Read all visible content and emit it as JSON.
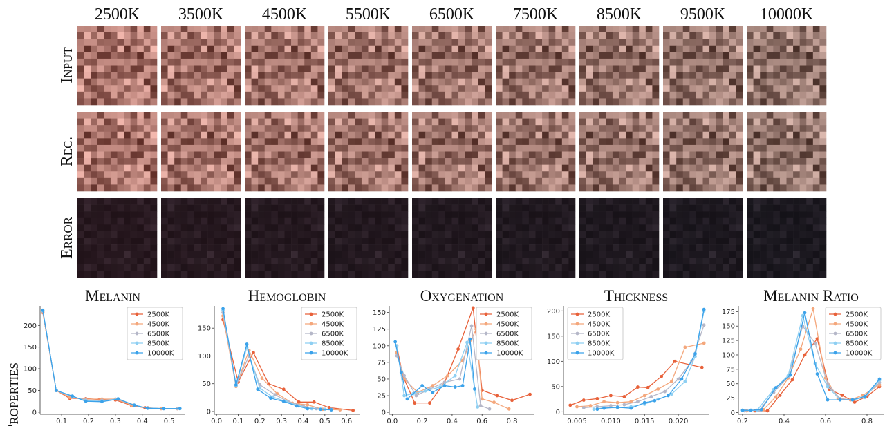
{
  "figure": {
    "columns": [
      "2500K",
      "3500K",
      "4500K",
      "5500K",
      "6500K",
      "7500K",
      "8500K",
      "9500K",
      "10000K"
    ],
    "rows": [
      "Input",
      "Rec.",
      "Error"
    ]
  },
  "chart_data": [
    {
      "type": "line",
      "title": "Melanin",
      "ylabel": "Properties",
      "legend": "upper right",
      "xlim": [
        0.02,
        0.56
      ],
      "xticks": [
        0.1,
        0.2,
        0.3,
        0.4,
        0.5
      ],
      "ylim": [
        -5,
        245
      ],
      "yticks": [
        0,
        50,
        100,
        150,
        200
      ],
      "series": [
        {
          "name": "2500K",
          "color": "#e8613a",
          "x": [
            0.03,
            0.08,
            0.13,
            0.19,
            0.24,
            0.3,
            0.36,
            0.41,
            0.47,
            0.53
          ],
          "values": [
            230,
            50,
            32,
            31,
            29,
            28,
            15,
            10,
            8,
            8
          ]
        },
        {
          "name": "4500K",
          "color": "#f4a77c",
          "x": [
            0.03,
            0.08,
            0.13,
            0.19,
            0.25,
            0.3,
            0.36,
            0.42,
            0.47,
            0.53
          ],
          "values": [
            232,
            50,
            34,
            30,
            30,
            30,
            16,
            10,
            8,
            8
          ]
        },
        {
          "name": "6500K",
          "color": "#b5b7c8",
          "x": [
            0.03,
            0.08,
            0.14,
            0.19,
            0.25,
            0.31,
            0.37,
            0.42,
            0.48,
            0.53
          ],
          "values": [
            233,
            50,
            35,
            28,
            27,
            30,
            16,
            9,
            8,
            8
          ]
        },
        {
          "name": "8500K",
          "color": "#8ecff2",
          "x": [
            0.03,
            0.08,
            0.14,
            0.19,
            0.25,
            0.31,
            0.37,
            0.42,
            0.48,
            0.54
          ],
          "values": [
            234,
            50,
            36,
            26,
            25,
            31,
            16,
            9,
            8,
            8
          ]
        },
        {
          "name": "10000K",
          "color": "#3ba2ea",
          "x": [
            0.03,
            0.08,
            0.14,
            0.19,
            0.25,
            0.31,
            0.37,
            0.42,
            0.48,
            0.54
          ],
          "values": [
            235,
            50,
            37,
            25,
            24,
            30,
            16,
            9,
            8,
            8
          ]
        }
      ]
    },
    {
      "type": "line",
      "title": "Hemoglobin",
      "legend": "upper right",
      "xlim": [
        -0.01,
        0.66
      ],
      "xticks": [
        {
          "value": 0,
          "label": "0.0"
        },
        0.1,
        0.2,
        0.3,
        0.4,
        0.5,
        0.6
      ],
      "ylim": [
        -5,
        190
      ],
      "yticks": [
        0,
        50,
        100,
        150
      ],
      "series": [
        {
          "name": "2500K",
          "color": "#e8613a",
          "x": [
            0.03,
            0.1,
            0.17,
            0.24,
            0.31,
            0.38,
            0.45,
            0.52,
            0.63
          ],
          "values": [
            165,
            53,
            106,
            50,
            40,
            17,
            17,
            7,
            2
          ]
        },
        {
          "name": "4500K",
          "color": "#f4a77c",
          "x": [
            0.03,
            0.09,
            0.15,
            0.21,
            0.28,
            0.35,
            0.42,
            0.49,
            0.57
          ],
          "values": [
            172,
            45,
            110,
            60,
            32,
            15,
            12,
            4,
            3
          ]
        },
        {
          "name": "6500K",
          "color": "#b5b7c8",
          "x": [
            0.03,
            0.09,
            0.15,
            0.2,
            0.27,
            0.33,
            0.4,
            0.46,
            0.53
          ],
          "values": [
            178,
            46,
            100,
            48,
            30,
            18,
            10,
            5,
            4
          ]
        },
        {
          "name": "8500K",
          "color": "#8ecff2",
          "x": [
            0.03,
            0.09,
            0.14,
            0.2,
            0.26,
            0.32,
            0.38,
            0.44,
            0.5
          ],
          "values": [
            182,
            47,
            115,
            42,
            26,
            18,
            10,
            5,
            4
          ]
        },
        {
          "name": "10000K",
          "color": "#3ba2ea",
          "x": [
            0.03,
            0.09,
            0.14,
            0.19,
            0.25,
            0.31,
            0.37,
            0.42,
            0.48,
            0.53
          ],
          "values": [
            185,
            48,
            121,
            40,
            24,
            18,
            10,
            5,
            4,
            3
          ]
        }
      ]
    },
    {
      "type": "line",
      "title": "Oxygenation",
      "legend": "upper right",
      "xlim": [
        -0.02,
        0.95
      ],
      "xticks": [
        {
          "value": 0,
          "label": "0.0"
        },
        0.2,
        0.4,
        0.6,
        0.8
      ],
      "ylim": [
        -3,
        160
      ],
      "yticks": [
        0,
        25,
        50,
        75,
        100,
        125,
        150
      ],
      "series": [
        {
          "name": "2500K",
          "color": "#e8613a",
          "x": [
            0.03,
            0.07,
            0.15,
            0.25,
            0.35,
            0.44,
            0.54,
            0.6,
            0.7,
            0.8,
            0.92
          ],
          "values": [
            100,
            55,
            14,
            14,
            45,
            95,
            157,
            33,
            25,
            18,
            27
          ]
        },
        {
          "name": "4500K",
          "color": "#f4a77c",
          "x": [
            0.03,
            0.08,
            0.17,
            0.27,
            0.37,
            0.47,
            0.56,
            0.6,
            0.68,
            0.78
          ],
          "values": [
            90,
            50,
            30,
            40,
            55,
            78,
            125,
            20,
            15,
            5
          ]
        },
        {
          "name": "6500K",
          "color": "#b5b7c8",
          "x": [
            0.03,
            0.08,
            0.16,
            0.25,
            0.35,
            0.45,
            0.53,
            0.59,
            0.65
          ],
          "values": [
            85,
            55,
            25,
            35,
            45,
            50,
            130,
            10,
            5
          ]
        },
        {
          "name": "8500K",
          "color": "#8ecff2",
          "x": [
            0.03,
            0.08,
            0.14,
            0.22,
            0.32,
            0.42,
            0.5,
            0.57
          ],
          "values": [
            100,
            25,
            28,
            32,
            38,
            55,
            105,
            8
          ]
        },
        {
          "name": "10000K",
          "color": "#3ba2ea",
          "x": [
            0.02,
            0.06,
            0.1,
            0.2,
            0.27,
            0.35,
            0.42,
            0.47,
            0.52,
            0.55
          ],
          "values": [
            106,
            60,
            20,
            40,
            30,
            40,
            38,
            40,
            110,
            35
          ]
        }
      ]
    },
    {
      "type": "line",
      "title": "Thickness",
      "legend": "upper left",
      "xlim": [
        0.003,
        0.0245
      ],
      "xticks": [
        0.005,
        {
          "value": 0.01,
          "label": "0.010"
        },
        0.015,
        {
          "value": 0.02,
          "label": "0.020"
        }
      ],
      "ylim": [
        -5,
        210
      ],
      "yticks": [
        0,
        50,
        100,
        150,
        200
      ],
      "series": [
        {
          "name": "2500K",
          "color": "#e8613a",
          "x": [
            0.004,
            0.006,
            0.008,
            0.01,
            0.012,
            0.014,
            0.0155,
            0.0175,
            0.0195,
            0.0235
          ],
          "values": [
            13,
            23,
            26,
            32,
            30,
            49,
            48,
            70,
            100,
            88
          ]
        },
        {
          "name": "4500K",
          "color": "#f4a77c",
          "x": [
            0.005,
            0.007,
            0.009,
            0.011,
            0.013,
            0.015,
            0.017,
            0.019,
            0.021,
            0.0238
          ],
          "values": [
            10,
            12,
            20,
            18,
            20,
            32,
            45,
            60,
            128,
            136
          ]
        },
        {
          "name": "6500K",
          "color": "#b5b7c8",
          "x": [
            0.006,
            0.008,
            0.01,
            0.012,
            0.014,
            0.016,
            0.018,
            0.02,
            0.022,
            0.0238
          ],
          "values": [
            8,
            10,
            12,
            14,
            20,
            30,
            40,
            65,
            100,
            172
          ]
        },
        {
          "name": "8500K",
          "color": "#8ecff2",
          "x": [
            0.0075,
            0.009,
            0.011,
            0.013,
            0.015,
            0.017,
            0.019,
            0.021,
            0.0225,
            0.0238
          ],
          "values": [
            5,
            8,
            8,
            10,
            15,
            25,
            35,
            60,
            110,
            200
          ]
        },
        {
          "name": "10000K",
          "color": "#3ba2ea",
          "x": [
            0.008,
            0.009,
            0.011,
            0.013,
            0.015,
            0.0165,
            0.0185,
            0.0205,
            0.0225,
            0.0238
          ],
          "values": [
            5,
            7,
            9,
            7,
            18,
            22,
            32,
            65,
            115,
            203
          ]
        }
      ]
    },
    {
      "type": "line",
      "title": "Melanin Ratio",
      "legend": "upper right",
      "xlim": [
        0.18,
        0.88
      ],
      "xticks": [
        0.2,
        0.4,
        0.6,
        0.8
      ],
      "ylim": [
        -3,
        185
      ],
      "yticks": [
        0,
        25,
        50,
        75,
        100,
        125,
        150,
        175
      ],
      "series": [
        {
          "name": "2500K",
          "color": "#e8613a",
          "x": [
            0.26,
            0.32,
            0.38,
            0.44,
            0.5,
            0.56,
            0.62,
            0.68,
            0.74,
            0.8,
            0.86
          ],
          "values": [
            3,
            3,
            30,
            57,
            100,
            128,
            40,
            30,
            18,
            28,
            45
          ]
        },
        {
          "name": "4500K",
          "color": "#f4a77c",
          "x": [
            0.22,
            0.3,
            0.36,
            0.42,
            0.48,
            0.54,
            0.6,
            0.66,
            0.72,
            0.78,
            0.86
          ],
          "values": [
            3,
            5,
            27,
            60,
            110,
            180,
            60,
            25,
            22,
            30,
            48
          ]
        },
        {
          "name": "6500K",
          "color": "#b5b7c8",
          "x": [
            0.21,
            0.28,
            0.35,
            0.42,
            0.49,
            0.55,
            0.61,
            0.67,
            0.73,
            0.79,
            0.86
          ],
          "values": [
            3,
            4,
            35,
            62,
            150,
            120,
            50,
            24,
            22,
            28,
            52
          ]
        },
        {
          "name": "8500K",
          "color": "#8ecff2",
          "x": [
            0.2,
            0.27,
            0.35,
            0.42,
            0.49,
            0.55,
            0.61,
            0.67,
            0.73,
            0.79,
            0.86
          ],
          "values": [
            4,
            4,
            40,
            64,
            168,
            85,
            45,
            22,
            22,
            26,
            56
          ]
        },
        {
          "name": "10000K",
          "color": "#3ba2ea",
          "x": [
            0.2,
            0.24,
            0.29,
            0.36,
            0.43,
            0.5,
            0.56,
            0.61,
            0.67,
            0.73,
            0.79,
            0.86
          ],
          "values": [
            4,
            4,
            5,
            43,
            65,
            173,
            67,
            22,
            22,
            22,
            28,
            58
          ]
        }
      ]
    }
  ]
}
